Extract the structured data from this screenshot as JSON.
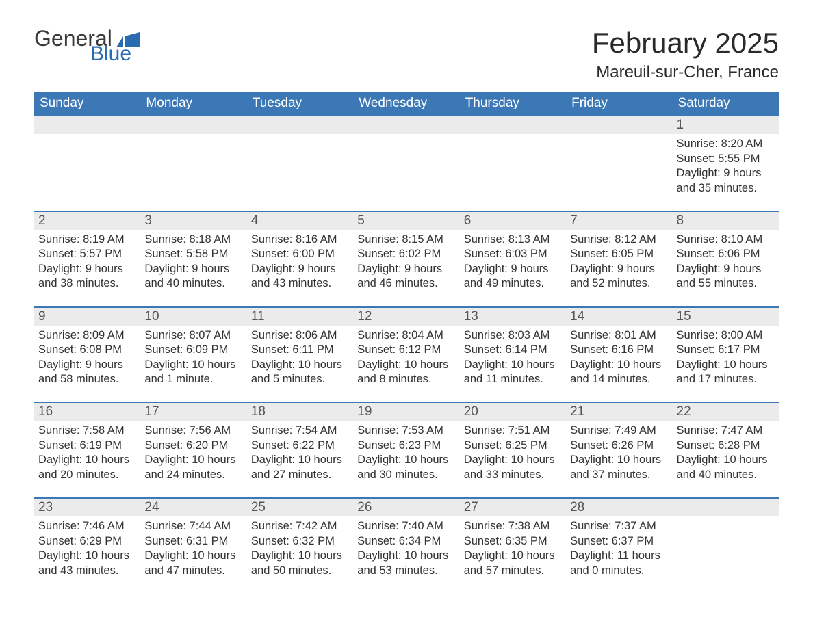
{
  "logo": {
    "text1": "General",
    "text2": "Blue",
    "flag_color": "#2a6bb0"
  },
  "header": {
    "month_title": "February 2025",
    "location": "Mareuil-sur-Cher, France"
  },
  "colors": {
    "header_bg": "#3d78b6",
    "header_text": "#ffffff",
    "daynum_bg": "#ebebeb",
    "daynum_border": "#3d78b6",
    "body_text": "#333333",
    "page_bg": "#ffffff"
  },
  "day_headers": [
    "Sunday",
    "Monday",
    "Tuesday",
    "Wednesday",
    "Thursday",
    "Friday",
    "Saturday"
  ],
  "weeks": [
    {
      "days": [
        null,
        null,
        null,
        null,
        null,
        null,
        {
          "num": "1",
          "sunrise": "8:20 AM",
          "sunset": "5:55 PM",
          "daylight": "9 hours and 35 minutes."
        }
      ]
    },
    {
      "days": [
        {
          "num": "2",
          "sunrise": "8:19 AM",
          "sunset": "5:57 PM",
          "daylight": "9 hours and 38 minutes."
        },
        {
          "num": "3",
          "sunrise": "8:18 AM",
          "sunset": "5:58 PM",
          "daylight": "9 hours and 40 minutes."
        },
        {
          "num": "4",
          "sunrise": "8:16 AM",
          "sunset": "6:00 PM",
          "daylight": "9 hours and 43 minutes."
        },
        {
          "num": "5",
          "sunrise": "8:15 AM",
          "sunset": "6:02 PM",
          "daylight": "9 hours and 46 minutes."
        },
        {
          "num": "6",
          "sunrise": "8:13 AM",
          "sunset": "6:03 PM",
          "daylight": "9 hours and 49 minutes."
        },
        {
          "num": "7",
          "sunrise": "8:12 AM",
          "sunset": "6:05 PM",
          "daylight": "9 hours and 52 minutes."
        },
        {
          "num": "8",
          "sunrise": "8:10 AM",
          "sunset": "6:06 PM",
          "daylight": "9 hours and 55 minutes."
        }
      ]
    },
    {
      "days": [
        {
          "num": "9",
          "sunrise": "8:09 AM",
          "sunset": "6:08 PM",
          "daylight": "9 hours and 58 minutes."
        },
        {
          "num": "10",
          "sunrise": "8:07 AM",
          "sunset": "6:09 PM",
          "daylight": "10 hours and 1 minute."
        },
        {
          "num": "11",
          "sunrise": "8:06 AM",
          "sunset": "6:11 PM",
          "daylight": "10 hours and 5 minutes."
        },
        {
          "num": "12",
          "sunrise": "8:04 AM",
          "sunset": "6:12 PM",
          "daylight": "10 hours and 8 minutes."
        },
        {
          "num": "13",
          "sunrise": "8:03 AM",
          "sunset": "6:14 PM",
          "daylight": "10 hours and 11 minutes."
        },
        {
          "num": "14",
          "sunrise": "8:01 AM",
          "sunset": "6:16 PM",
          "daylight": "10 hours and 14 minutes."
        },
        {
          "num": "15",
          "sunrise": "8:00 AM",
          "sunset": "6:17 PM",
          "daylight": "10 hours and 17 minutes."
        }
      ]
    },
    {
      "days": [
        {
          "num": "16",
          "sunrise": "7:58 AM",
          "sunset": "6:19 PM",
          "daylight": "10 hours and 20 minutes."
        },
        {
          "num": "17",
          "sunrise": "7:56 AM",
          "sunset": "6:20 PM",
          "daylight": "10 hours and 24 minutes."
        },
        {
          "num": "18",
          "sunrise": "7:54 AM",
          "sunset": "6:22 PM",
          "daylight": "10 hours and 27 minutes."
        },
        {
          "num": "19",
          "sunrise": "7:53 AM",
          "sunset": "6:23 PM",
          "daylight": "10 hours and 30 minutes."
        },
        {
          "num": "20",
          "sunrise": "7:51 AM",
          "sunset": "6:25 PM",
          "daylight": "10 hours and 33 minutes."
        },
        {
          "num": "21",
          "sunrise": "7:49 AM",
          "sunset": "6:26 PM",
          "daylight": "10 hours and 37 minutes."
        },
        {
          "num": "22",
          "sunrise": "7:47 AM",
          "sunset": "6:28 PM",
          "daylight": "10 hours and 40 minutes."
        }
      ]
    },
    {
      "days": [
        {
          "num": "23",
          "sunrise": "7:46 AM",
          "sunset": "6:29 PM",
          "daylight": "10 hours and 43 minutes."
        },
        {
          "num": "24",
          "sunrise": "7:44 AM",
          "sunset": "6:31 PM",
          "daylight": "10 hours and 47 minutes."
        },
        {
          "num": "25",
          "sunrise": "7:42 AM",
          "sunset": "6:32 PM",
          "daylight": "10 hours and 50 minutes."
        },
        {
          "num": "26",
          "sunrise": "7:40 AM",
          "sunset": "6:34 PM",
          "daylight": "10 hours and 53 minutes."
        },
        {
          "num": "27",
          "sunrise": "7:38 AM",
          "sunset": "6:35 PM",
          "daylight": "10 hours and 57 minutes."
        },
        {
          "num": "28",
          "sunrise": "7:37 AM",
          "sunset": "6:37 PM",
          "daylight": "11 hours and 0 minutes."
        },
        null
      ]
    }
  ],
  "labels": {
    "sunrise": "Sunrise:",
    "sunset": "Sunset:",
    "daylight": "Daylight:"
  }
}
